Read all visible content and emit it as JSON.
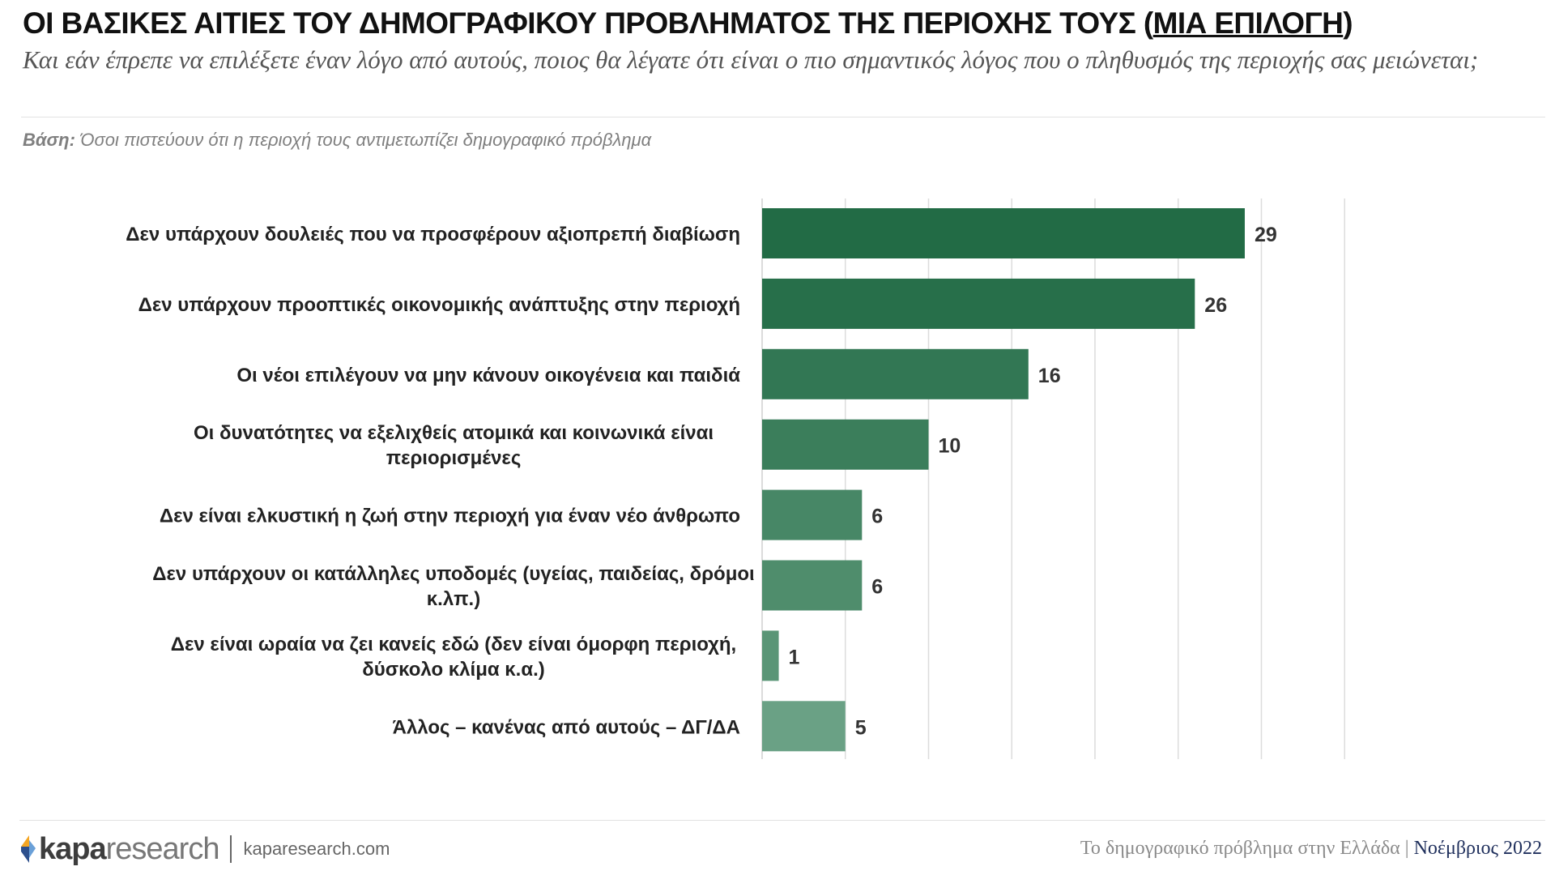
{
  "header": {
    "title_main": "ΟΙ ΒΑΣΙΚΕΣ ΑΙΤΙΕΣ ΤΟΥ ΔΗΜΟΓΡΑΦΙΚΟΥ ΠΡΟΒΛΗΜΑΤΟΣ ΤΗΣ ΠΕΡΙΟΧΗΣ ΤΟΥΣ (",
    "title_underlined": "ΜΙΑ ΕΠΙΛΟΓΗ",
    "title_close": ")",
    "question": "Και εάν έπρεπε να επιλέξετε έναν λόγο από αυτούς, ποιος θα λέγατε ότι είναι ο πιο σημαντικός λόγος που ο πληθυσμός της περιοχής σας μειώνεται;",
    "base_label": "Βάση:",
    "base_text": " Όσοι πιστεύουν ότι η περιοχή τους αντιμετωπίζει δημογραφικό πρόβλημα"
  },
  "chart_data": {
    "type": "bar",
    "orientation": "horizontal",
    "categories": [
      [
        "Δεν υπάρχουν δουλειές που να προσφέρουν αξιοπρεπή διαβίωση"
      ],
      [
        "Δεν υπάρχουν προοπτικές οικονομικής ανάπτυξης στην περιοχή"
      ],
      [
        "Οι νέοι επιλέγουν να μην κάνουν οικογένεια και παιδιά"
      ],
      [
        "Οι δυνατότητες να εξελιχθείς ατομικά και κοινωνικά είναι",
        "περιορισμένες"
      ],
      [
        "Δεν είναι ελκυστική η ζωή στην περιοχή για έναν νέο άνθρωπο"
      ],
      [
        "Δεν υπάρχουν οι κατάλληλες υποδομές (υγείας, παιδείας, δρόμοι",
        "κ.λπ.)"
      ],
      [
        "Δεν είναι ωραία να ζει κανείς εδώ (δεν είναι όμορφη περιοχή,",
        "δύσκολο κλίμα κ.α.)"
      ],
      [
        "Άλλος – κανένας από αυτούς – ΔΓ/ΔΑ"
      ]
    ],
    "values": [
      29,
      26,
      16,
      10,
      6,
      6,
      1,
      5
    ],
    "xlim": [
      0,
      35
    ],
    "grid": true,
    "bar_colors": [
      "#226b45",
      "#276f4a",
      "#327754",
      "#3b7e5b",
      "#478766",
      "#4f8d6c",
      "#5a9576",
      "#6aa185"
    ]
  },
  "footer": {
    "logo_a": "kapa",
    "logo_b": "research",
    "site": "kaparesearch.com",
    "report": "Το δημογραφικό πρόβλημα στην Ελλάδα | ",
    "date": "Νοέμβριος 2022"
  }
}
